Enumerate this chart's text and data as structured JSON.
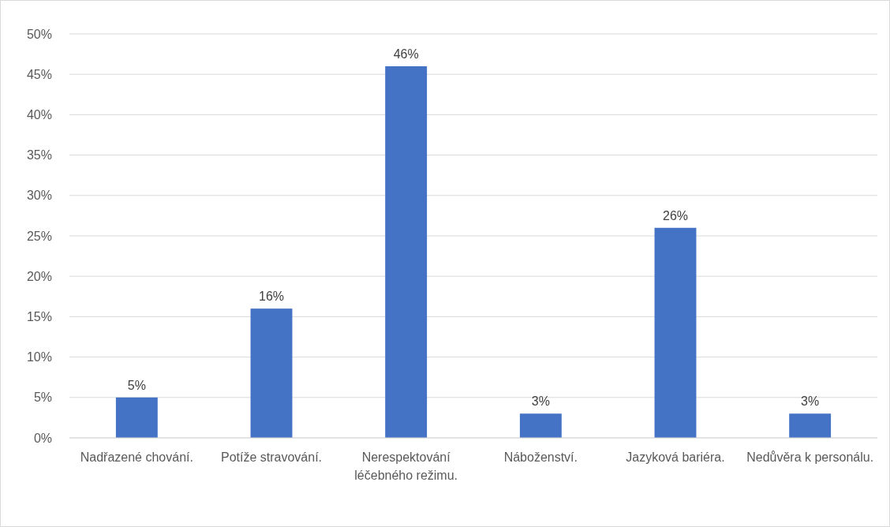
{
  "chart_data": {
    "type": "bar",
    "categories": [
      "Nadřazené chování.",
      "Potíže stravování.",
      "Nerespektování léčebného režimu.",
      "Náboženství.",
      "Jazyková bariéra.",
      "Nedůvěra k personálu."
    ],
    "values": [
      5,
      16,
      46,
      3,
      26,
      3
    ],
    "color": "#4472c4",
    "value_labels": [
      "5%",
      "16%",
      "46%",
      "3%",
      "26%",
      "3%"
    ],
    "ylim": [
      0,
      50
    ],
    "yticks": [
      {
        "value": 0,
        "label": "0%"
      },
      {
        "value": 5,
        "label": "5%"
      },
      {
        "value": 10,
        "label": "10%"
      },
      {
        "value": 15,
        "label": "15%"
      },
      {
        "value": 20,
        "label": "20%"
      },
      {
        "value": 25,
        "label": "25%"
      },
      {
        "value": 30,
        "label": "30%"
      },
      {
        "value": 35,
        "label": "35%"
      },
      {
        "value": 40,
        "label": "40%"
      },
      {
        "value": 45,
        "label": "45%"
      },
      {
        "value": 50,
        "label": "50%"
      }
    ],
    "grid": "y"
  }
}
